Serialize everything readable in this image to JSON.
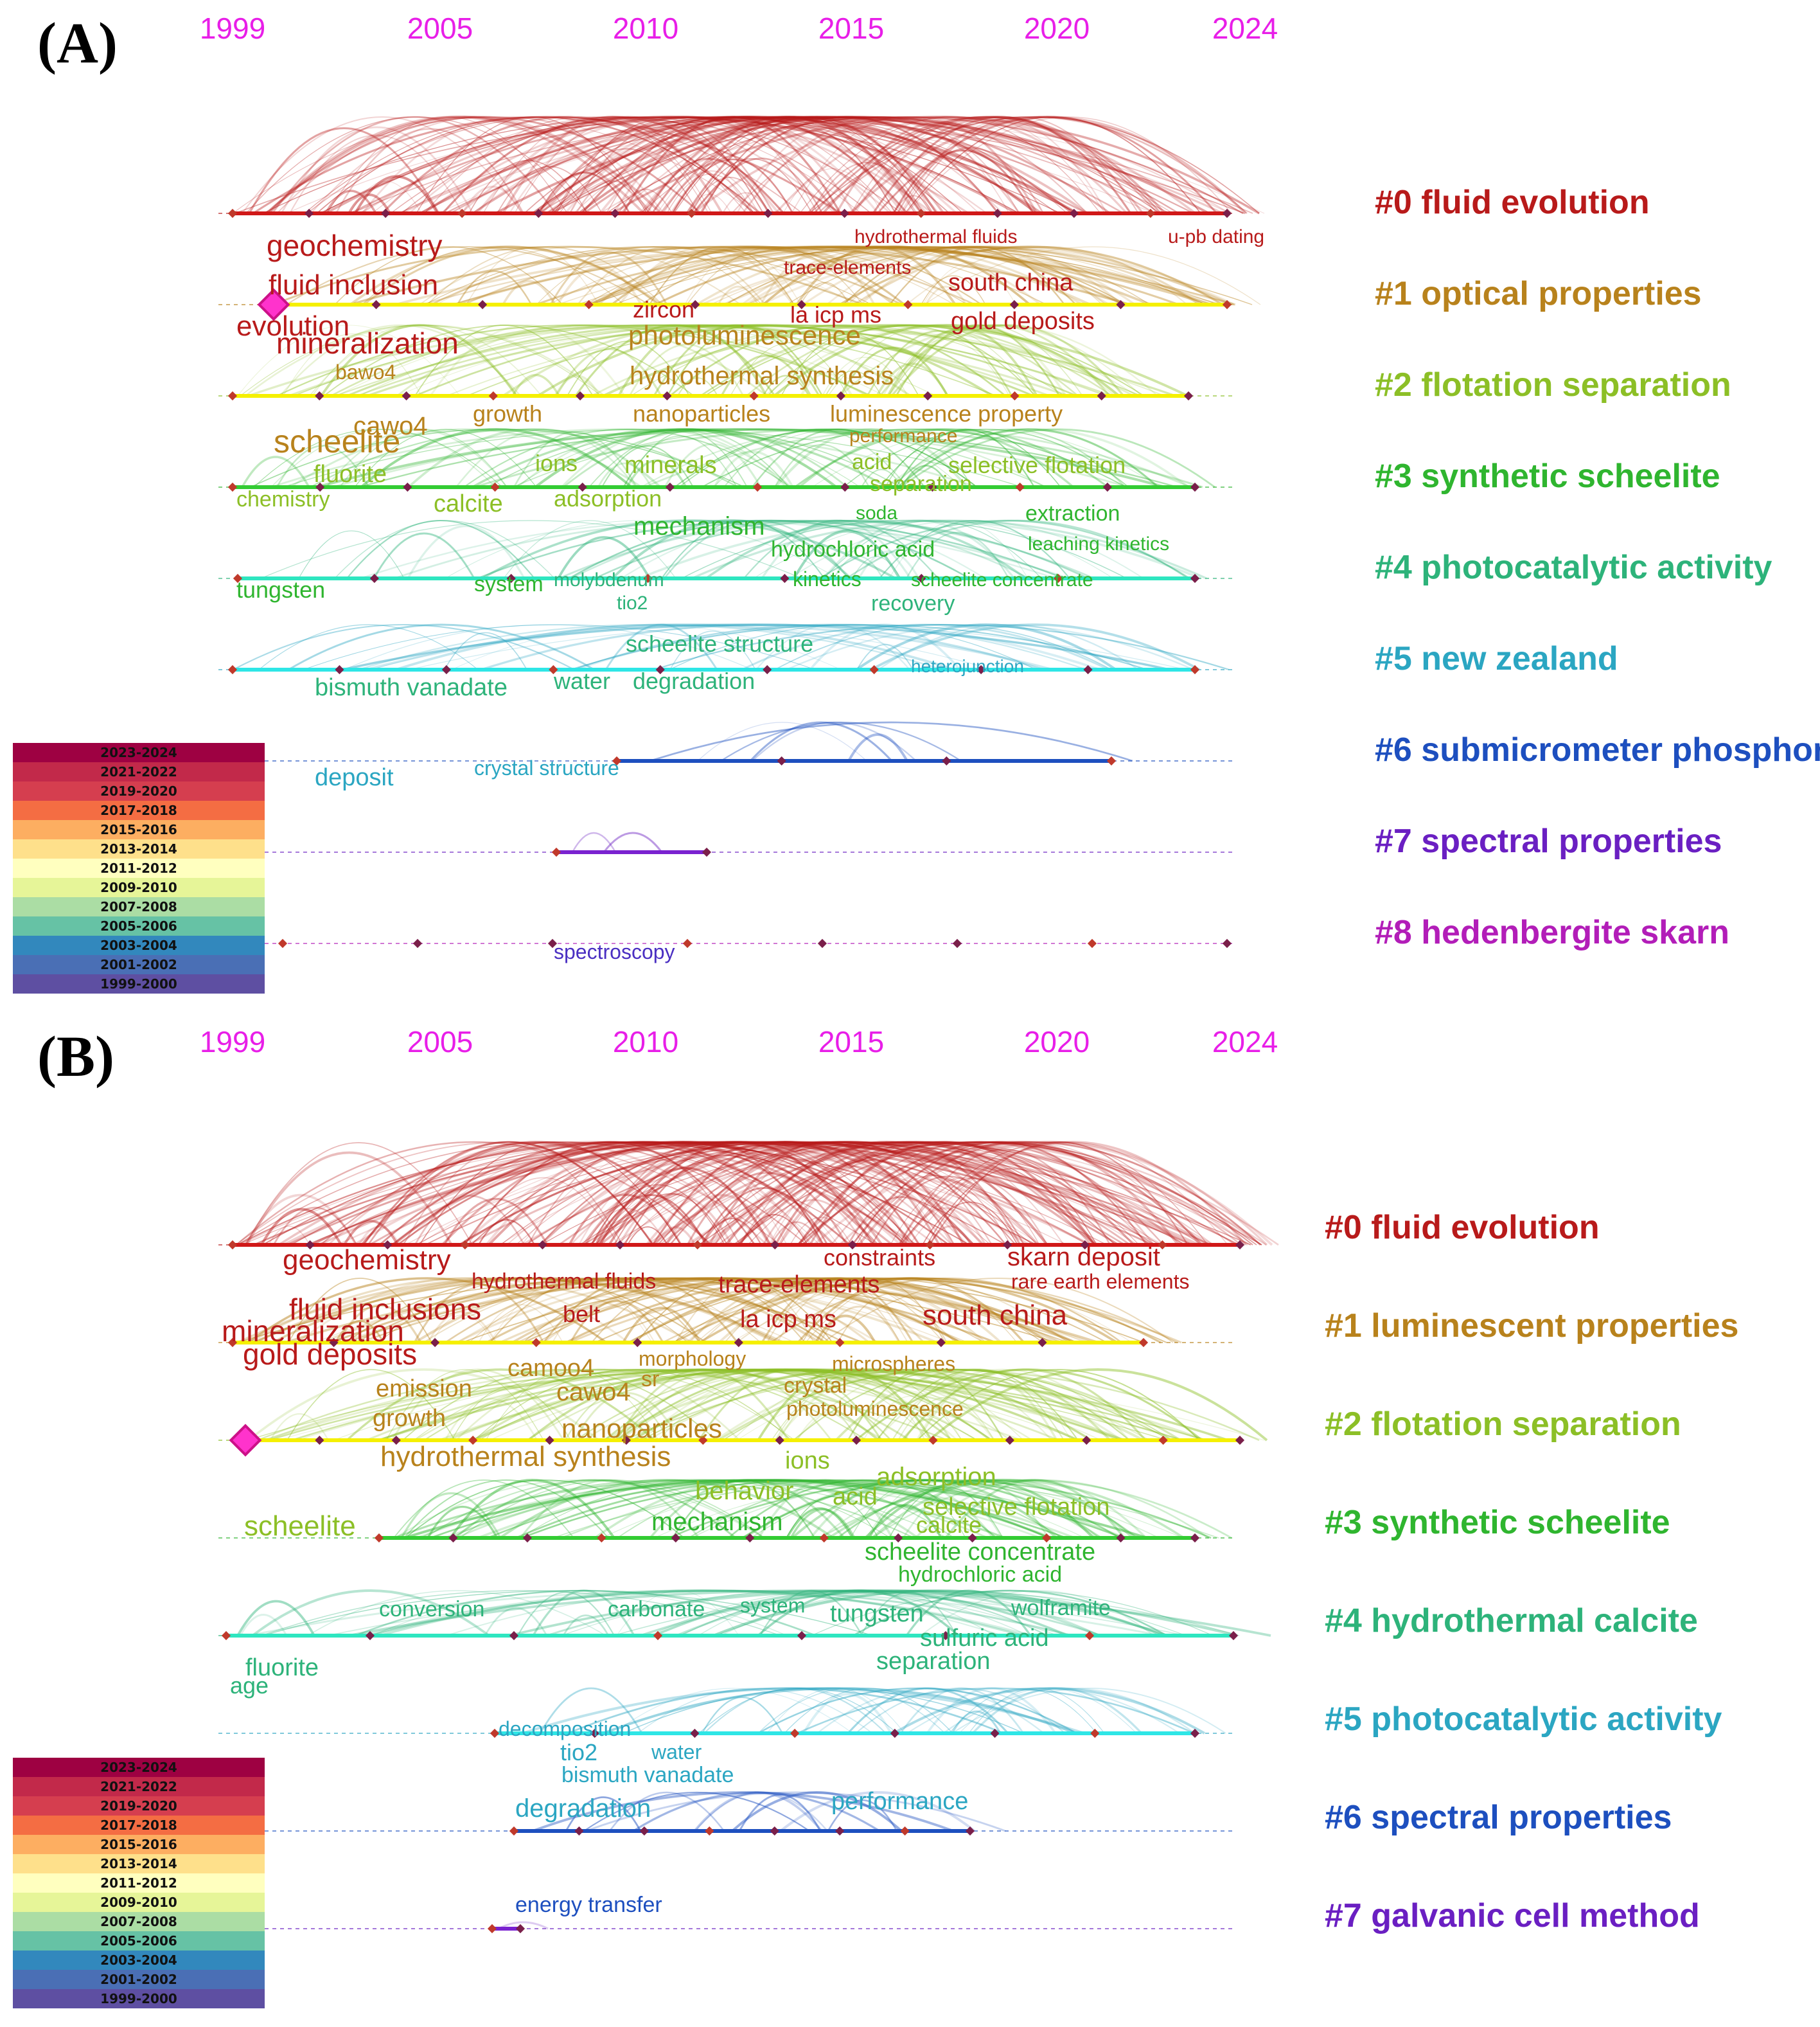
{
  "panels": [
    {
      "label": "(A)",
      "years": [
        "1999",
        "2005",
        "2010",
        "2015",
        "2020",
        "2024"
      ],
      "clusters": [
        {
          "label": "#0 fluid evolution",
          "color": "#b81a1a"
        },
        {
          "label": "#1 optical properties",
          "color": "#b8821c"
        },
        {
          "label": "#2 flotation separation",
          "color": "#8cbf26"
        },
        {
          "label": "#3 synthetic scheelite",
          "color": "#2fb52f"
        },
        {
          "label": "#4 photocatalytic activity",
          "color": "#2db37a"
        },
        {
          "label": "#5 new zealand",
          "color": "#2ba6c2"
        },
        {
          "label": "#6 submicrometer phosphor",
          "color": "#1d4fbf"
        },
        {
          "label": "#7 spectral properties",
          "color": "#6a1fc2"
        },
        {
          "label": "#8 hedenbergite skarn",
          "color": "#b21db8"
        }
      ],
      "keywords": [
        {
          "t": "geochemistry",
          "c": "#b81a1a",
          "s": 46
        },
        {
          "t": "fluid inclusion",
          "c": "#b81a1a",
          "s": 44
        },
        {
          "t": "evolution",
          "c": "#b81a1a",
          "s": 44
        },
        {
          "t": "mineralization",
          "c": "#b81a1a",
          "s": 46
        },
        {
          "t": "hydrothermal fluids",
          "c": "#b81a1a",
          "s": 30
        },
        {
          "t": "u-pb dating",
          "c": "#b81a1a",
          "s": 30
        },
        {
          "t": "trace-elements",
          "c": "#b81a1a",
          "s": 30
        },
        {
          "t": "south china",
          "c": "#b81a1a",
          "s": 38
        },
        {
          "t": "zircon",
          "c": "#b81a1a",
          "s": 36
        },
        {
          "t": "la icp ms",
          "c": "#b81a1a",
          "s": 36
        },
        {
          "t": "gold deposits",
          "c": "#b81a1a",
          "s": 38
        },
        {
          "t": "photoluminescence",
          "c": "#b8821c",
          "s": 42
        },
        {
          "t": "bawo4",
          "c": "#b8821c",
          "s": 32
        },
        {
          "t": "hydrothermal synthesis",
          "c": "#b8821c",
          "s": 40
        },
        {
          "t": "growth",
          "c": "#b8821c",
          "s": 36
        },
        {
          "t": "cawo4",
          "c": "#b8821c",
          "s": 40
        },
        {
          "t": "nanoparticles",
          "c": "#b8821c",
          "s": 36
        },
        {
          "t": "luminescence property",
          "c": "#b8821c",
          "s": 36
        },
        {
          "t": "scheelite",
          "c": "#b8821c",
          "s": 50
        },
        {
          "t": "performance",
          "c": "#b8821c",
          "s": 30
        },
        {
          "t": "fluorite",
          "c": "#8cbf26",
          "s": 38
        },
        {
          "t": "ions",
          "c": "#8cbf26",
          "s": 36
        },
        {
          "t": "minerals",
          "c": "#8cbf26",
          "s": 38
        },
        {
          "t": "acid",
          "c": "#8cbf26",
          "s": 34
        },
        {
          "t": "selective flotation",
          "c": "#8cbf26",
          "s": 36
        },
        {
          "t": "chemistry",
          "c": "#8cbf26",
          "s": 34
        },
        {
          "t": "calcite",
          "c": "#8cbf26",
          "s": 38
        },
        {
          "t": "adsorption",
          "c": "#8cbf26",
          "s": 36
        },
        {
          "t": "separation",
          "c": "#8cbf26",
          "s": 34
        },
        {
          "t": "soda",
          "c": "#2fb52f",
          "s": 30
        },
        {
          "t": "extraction",
          "c": "#2fb52f",
          "s": 34
        },
        {
          "t": "mechanism",
          "c": "#2fb52f",
          "s": 40
        },
        {
          "t": "hydrochloric acid",
          "c": "#2fb52f",
          "s": 34
        },
        {
          "t": "leaching kinetics",
          "c": "#2fb52f",
          "s": 30
        },
        {
          "t": "tungsten",
          "c": "#2fb52f",
          "s": 36
        },
        {
          "t": "system",
          "c": "#2fb52f",
          "s": 34
        },
        {
          "t": "molybdenum",
          "c": "#2db37a",
          "s": 30
        },
        {
          "t": "kinetics",
          "c": "#2fb52f",
          "s": 32
        },
        {
          "t": "scheelite concentrate",
          "c": "#2fb52f",
          "s": 30
        },
        {
          "t": "tio2",
          "c": "#2db37a",
          "s": 30
        },
        {
          "t": "recovery",
          "c": "#2db37a",
          "s": 34
        },
        {
          "t": "scheelite structure",
          "c": "#2db37a",
          "s": 36
        },
        {
          "t": "bismuth vanadate",
          "c": "#2db37a",
          "s": 38
        },
        {
          "t": "water",
          "c": "#2db37a",
          "s": 36
        },
        {
          "t": "degradation",
          "c": "#2db37a",
          "s": 36
        },
        {
          "t": "heterojunction",
          "c": "#2ba6c2",
          "s": 28
        },
        {
          "t": "deposit",
          "c": "#2ba6c2",
          "s": 38
        },
        {
          "t": "crystal structure",
          "c": "#2ba6c2",
          "s": 32
        },
        {
          "t": "spectroscopy",
          "c": "#4a2fc2",
          "s": 32
        }
      ],
      "legend": [
        "2023-2024",
        "2021-2022",
        "2019-2020",
        "2017-2018",
        "2015-2016",
        "2013-2014",
        "2011-2012",
        "2009-2010",
        "2007-2008",
        "2005-2006",
        "2003-2004",
        "2001-2002",
        "1999-2000"
      ]
    },
    {
      "label": "(B)",
      "years": [
        "1999",
        "2005",
        "2010",
        "2015",
        "2020",
        "2024"
      ],
      "clusters": [
        {
          "label": "#0 fluid evolution",
          "color": "#b81a1a"
        },
        {
          "label": "#1 luminescent properties",
          "color": "#b8821c"
        },
        {
          "label": "#2 flotation separation",
          "color": "#8cbf26"
        },
        {
          "label": "#3 synthetic scheelite",
          "color": "#2fb52f"
        },
        {
          "label": "#4 hydrothermal calcite",
          "color": "#2db37a"
        },
        {
          "label": "#5 photocatalytic activity",
          "color": "#2ba6c2"
        },
        {
          "label": "#6 spectral properties",
          "color": "#1d4fbf"
        },
        {
          "label": "#7 galvanic cell method",
          "color": "#6a1fc2"
        }
      ],
      "keywords": [
        {
          "t": "geochemistry",
          "c": "#b81a1a",
          "s": 44
        },
        {
          "t": "constraints",
          "c": "#b81a1a",
          "s": 36
        },
        {
          "t": "skarn deposit",
          "c": "#b81a1a",
          "s": 40
        },
        {
          "t": "rare earth elements",
          "c": "#b81a1a",
          "s": 32
        },
        {
          "t": "hydrothermal fluids",
          "c": "#b81a1a",
          "s": 34
        },
        {
          "t": "trace-elements",
          "c": "#b81a1a",
          "s": 38
        },
        {
          "t": "fluid inclusions",
          "c": "#b81a1a",
          "s": 46
        },
        {
          "t": "belt",
          "c": "#b81a1a",
          "s": 36
        },
        {
          "t": "mineralization",
          "c": "#b81a1a",
          "s": 46
        },
        {
          "t": "la icp ms",
          "c": "#b81a1a",
          "s": 38
        },
        {
          "t": "south china",
          "c": "#b81a1a",
          "s": 44
        },
        {
          "t": "gold deposits",
          "c": "#b81a1a",
          "s": 46
        },
        {
          "t": "camoo4",
          "c": "#b8821c",
          "s": 38
        },
        {
          "t": "morphology",
          "c": "#b8821c",
          "s": 32
        },
        {
          "t": "microspheres",
          "c": "#b8821c",
          "s": 32
        },
        {
          "t": "sr",
          "c": "#b8821c",
          "s": 34
        },
        {
          "t": "emission",
          "c": "#b8821c",
          "s": 38
        },
        {
          "t": "cawo4",
          "c": "#b8821c",
          "s": 40
        },
        {
          "t": "crystal",
          "c": "#b8821c",
          "s": 34
        },
        {
          "t": "photoluminescence",
          "c": "#b8821c",
          "s": 32
        },
        {
          "t": "growth",
          "c": "#b8821c",
          "s": 38
        },
        {
          "t": "nanoparticles",
          "c": "#b8821c",
          "s": 42
        },
        {
          "t": "hydrothermal synthesis",
          "c": "#b8821c",
          "s": 44
        },
        {
          "t": "ions",
          "c": "#8cbf26",
          "s": 38
        },
        {
          "t": "adsorption",
          "c": "#8cbf26",
          "s": 40
        },
        {
          "t": "behavior",
          "c": "#8cbf26",
          "s": 40
        },
        {
          "t": "acid",
          "c": "#8cbf26",
          "s": 38
        },
        {
          "t": "selective flotation",
          "c": "#8cbf26",
          "s": 38
        },
        {
          "t": "scheelite",
          "c": "#8cbf26",
          "s": 44
        },
        {
          "t": "mechanism",
          "c": "#2fb52f",
          "s": 40
        },
        {
          "t": "calcite",
          "c": "#8cbf26",
          "s": 36
        },
        {
          "t": "scheelite concentrate",
          "c": "#2fb52f",
          "s": 38
        },
        {
          "t": "hydrochloric acid",
          "c": "#2fb52f",
          "s": 34
        },
        {
          "t": "conversion",
          "c": "#2db37a",
          "s": 34
        },
        {
          "t": "carbonate",
          "c": "#2db37a",
          "s": 34
        },
        {
          "t": "system",
          "c": "#2db37a",
          "s": 32
        },
        {
          "t": "tungsten",
          "c": "#2db37a",
          "s": 38
        },
        {
          "t": "wolframite",
          "c": "#2db37a",
          "s": 34
        },
        {
          "t": "sulfuric acid",
          "c": "#2db37a",
          "s": 38
        },
        {
          "t": "separation",
          "c": "#2db37a",
          "s": 38
        },
        {
          "t": "fluorite",
          "c": "#2db37a",
          "s": 38
        },
        {
          "t": "age",
          "c": "#2db37a",
          "s": 36
        },
        {
          "t": "decomposition",
          "c": "#2ba6c2",
          "s": 32
        },
        {
          "t": "tio2",
          "c": "#2ba6c2",
          "s": 36
        },
        {
          "t": "water",
          "c": "#2ba6c2",
          "s": 32
        },
        {
          "t": "bismuth vanadate",
          "c": "#2ba6c2",
          "s": 34
        },
        {
          "t": "degradation",
          "c": "#2ba6c2",
          "s": 40
        },
        {
          "t": "performance",
          "c": "#2ba6c2",
          "s": 38
        },
        {
          "t": "energy transfer",
          "c": "#1d4fbf",
          "s": 34
        }
      ],
      "legend": [
        "2023-2024",
        "2021-2022",
        "2019-2020",
        "2017-2018",
        "2015-2016",
        "2013-2014",
        "2011-2012",
        "2009-2010",
        "2007-2008",
        "2005-2006",
        "2003-2004",
        "2001-2002",
        "1999-2000"
      ]
    }
  ]
}
